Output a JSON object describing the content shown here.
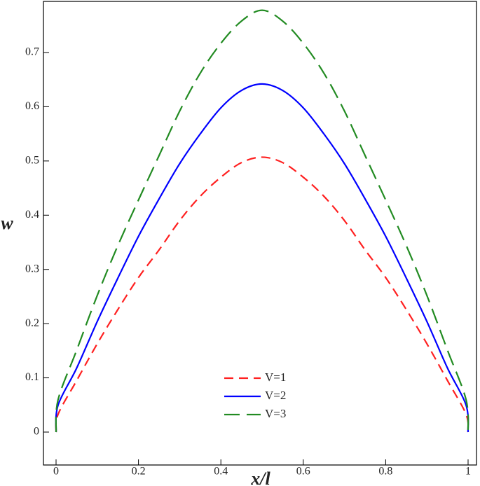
{
  "chart_data": {
    "type": "line",
    "xlabel": "x/l",
    "ylabel": "w",
    "xlim": [
      0,
      1
    ],
    "ylim": [
      0,
      0.78
    ],
    "x_ticks": [
      "0",
      "0.2",
      "0.4",
      "0.6",
      "0.8",
      "1"
    ],
    "y_ticks": [
      "0",
      "0.1",
      "0.2",
      "0.3",
      "0.4",
      "0.5",
      "0.6",
      "0.7"
    ],
    "grid": false,
    "legend_position": "bottom-center",
    "x": [
      0,
      0.005,
      0.05,
      0.1,
      0.15,
      0.2,
      0.25,
      0.3,
      0.35,
      0.4,
      0.45,
      0.5,
      0.55,
      0.6,
      0.65,
      0.7,
      0.75,
      0.8,
      0.85,
      0.9,
      0.95,
      0.995,
      1
    ],
    "series": [
      {
        "name": "V=1",
        "color": "#ff2020",
        "dash": "dashed",
        "values": [
          0,
          0.033,
          0.095,
          0.163,
          0.226,
          0.285,
          0.336,
          0.39,
          0.435,
          0.47,
          0.497,
          0.507,
          0.497,
          0.47,
          0.435,
          0.39,
          0.336,
          0.285,
          0.226,
          0.163,
          0.095,
          0.033,
          0
        ]
      },
      {
        "name": "V=2",
        "color": "#0000ff",
        "dash": "solid",
        "values": [
          0,
          0.05,
          0.118,
          0.204,
          0.284,
          0.361,
          0.43,
          0.495,
          0.55,
          0.598,
          0.63,
          0.642,
          0.63,
          0.598,
          0.55,
          0.495,
          0.43,
          0.361,
          0.284,
          0.204,
          0.118,
          0.05,
          0
        ]
      },
      {
        "name": "V=3",
        "color": "#228b22",
        "dash": "longdash",
        "values": [
          0,
          0.06,
          0.151,
          0.252,
          0.344,
          0.428,
          0.51,
          0.592,
          0.662,
          0.717,
          0.758,
          0.778,
          0.758,
          0.717,
          0.662,
          0.592,
          0.51,
          0.428,
          0.344,
          0.252,
          0.151,
          0.06,
          0
        ]
      }
    ]
  }
}
